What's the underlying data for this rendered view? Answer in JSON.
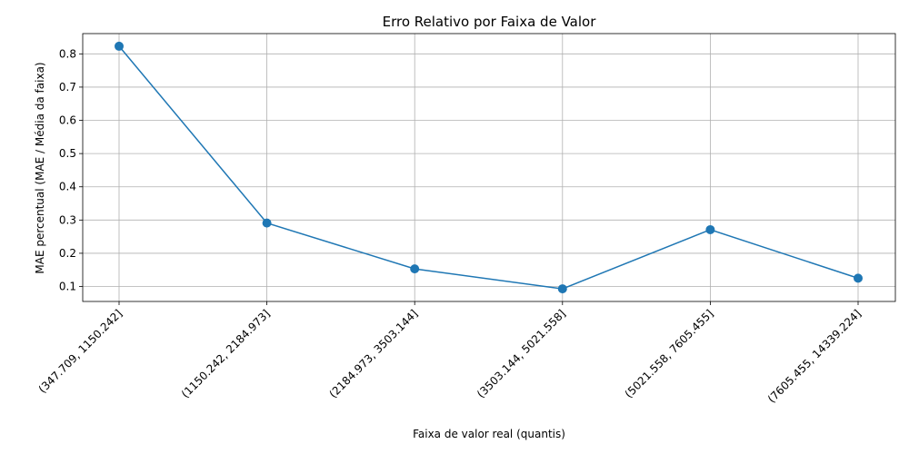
{
  "chart_data": {
    "type": "line",
    "title": "Erro Relativo por Faixa de Valor",
    "xlabel": "Faixa de valor real (quantis)",
    "ylabel": "MAE percentual (MAE / Média da faixa)",
    "categories": [
      "(347.709, 1150.242]",
      "(1150.242, 2184.973]",
      "(2184.973, 3503.144]",
      "(3503.144, 5021.558]",
      "(5021.558, 7605.455]",
      "(7605.455, 14339.224]"
    ],
    "series": [
      {
        "values": [
          0.823,
          0.291,
          0.153,
          0.093,
          0.271,
          0.125
        ]
      }
    ],
    "ylim": [
      0.055,
      0.861
    ],
    "yticks": [
      0.1,
      0.2,
      0.3,
      0.4,
      0.5,
      0.6,
      0.7,
      0.8
    ],
    "ytick_labels": [
      "0.1",
      "0.2",
      "0.3",
      "0.4",
      "0.5",
      "0.6",
      "0.7",
      "0.8"
    ],
    "grid": true,
    "marker": "circle",
    "colors": {
      "series": "#1f77b4",
      "grid": "#b0b0b0",
      "axis": "#000000"
    }
  }
}
